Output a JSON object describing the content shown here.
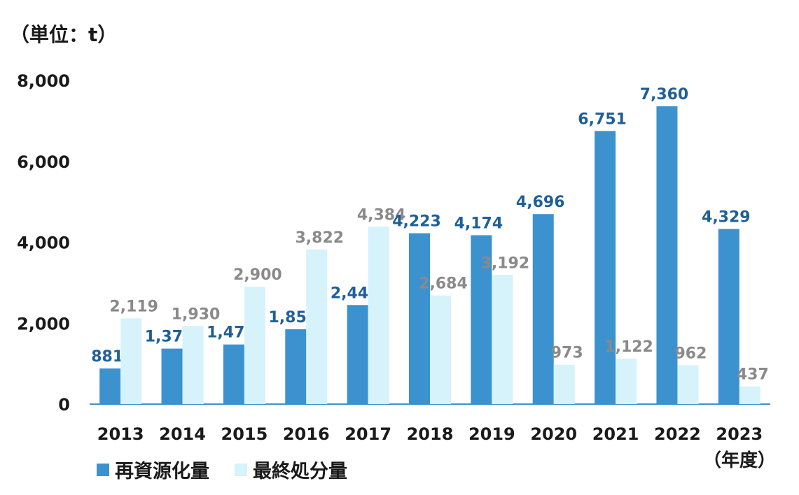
{
  "unit_label": "（単位：t）",
  "x_unit_label": "（年度）",
  "colors": {
    "recycled": "#3c92cf",
    "recycled_label": "#1f5f99",
    "landfill": "#d6f2fa",
    "landfill_label": "#8a8a8a",
    "axis": "#3c92cf",
    "text": "#1a1a1a"
  },
  "chart_data": {
    "type": "bar",
    "title": "",
    "xlabel": "（年度）",
    "ylabel": "（単位：t）",
    "ylim": [
      0,
      8000
    ],
    "yticks": [
      "0",
      "2,000",
      "4,000",
      "6,000",
      "8,000"
    ],
    "grid": false,
    "legend_position": "bottom-left",
    "categories": [
      "2013",
      "2014",
      "2015",
      "2016",
      "2017",
      "2018",
      "2019",
      "2020",
      "2021",
      "2022",
      "2023"
    ],
    "series": [
      {
        "name": "再資源化量",
        "values": [
          881,
          1372,
          1474,
          1852,
          2449,
          4223,
          4174,
          4696,
          6751,
          7360,
          4329
        ],
        "labels": [
          "881",
          "1,372",
          "1,474",
          "1,852",
          "2,449",
          "4,223",
          "4,174",
          "4,696",
          "6,751",
          "7,360",
          "4,329"
        ]
      },
      {
        "name": "最終処分量",
        "values": [
          2119,
          1930,
          2900,
          3822,
          4384,
          2684,
          3192,
          973,
          1122,
          962,
          437
        ],
        "labels": [
          "2,119",
          "1,930",
          "2,900",
          "3,822",
          "4,384",
          "2,684",
          "3,192",
          "973",
          "1,122",
          "962",
          "437"
        ]
      }
    ]
  }
}
